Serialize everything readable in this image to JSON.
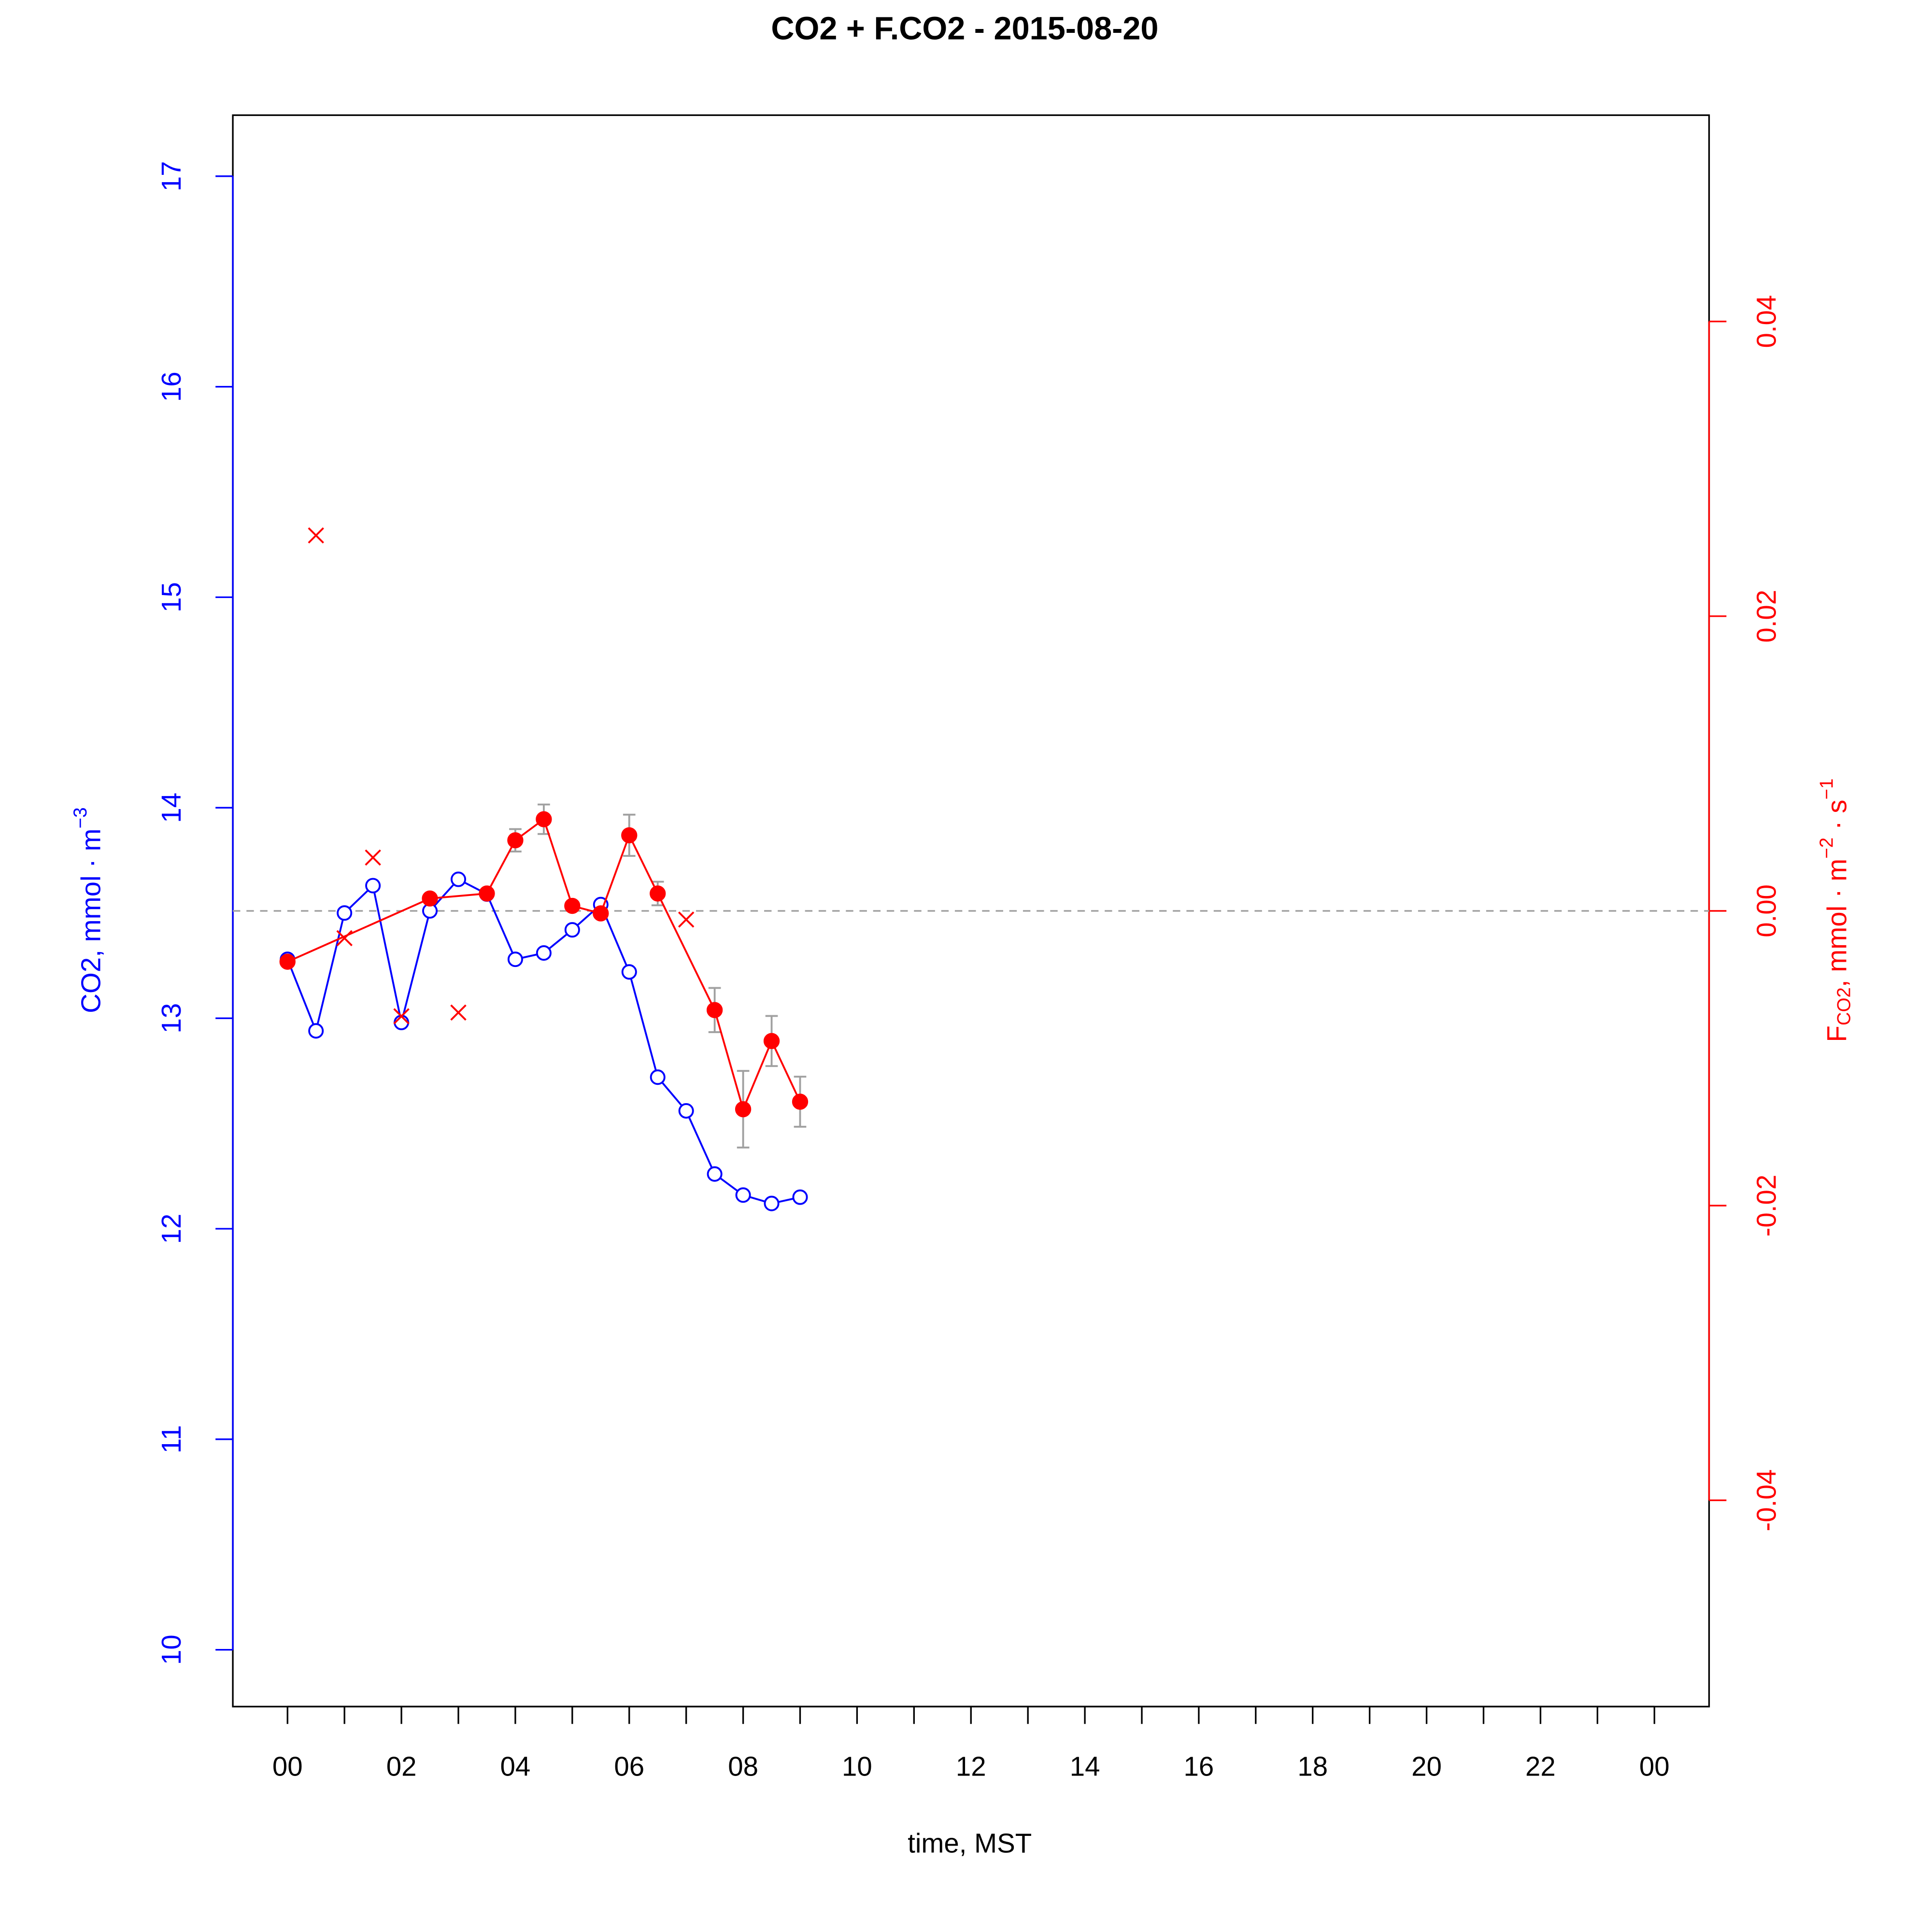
{
  "chart_data": {
    "type": "line",
    "title": "CO2 + F.CO2 -  2015-08-20",
    "xlabel": "time, MST",
    "ylabel": [
      {
        "text": "CO2, mmol · m"
      },
      {
        "sup": "−3"
      }
    ],
    "y2label": [
      {
        "text": "F"
      },
      {
        "sub": "CO2"
      },
      {
        "text": ", mmol · m"
      },
      {
        "sup": "−2"
      },
      {
        "text": " · s"
      },
      {
        "sup": "−1"
      }
    ],
    "xlim": [
      -0.96,
      24.96
    ],
    "xticks": [
      {
        "value": 0,
        "label": "00"
      },
      {
        "value": 2,
        "label": "02"
      },
      {
        "value": 4,
        "label": "04"
      },
      {
        "value": 6,
        "label": "06"
      },
      {
        "value": 8,
        "label": "08"
      },
      10,
      12,
      14,
      16,
      18,
      20,
      22,
      {
        "value": 24,
        "label": "00"
      }
    ],
    "xminorticks": [
      1,
      3,
      5,
      7,
      9,
      11,
      13,
      15,
      17,
      19,
      21,
      23
    ],
    "ylim": [
      9.73,
      17.29
    ],
    "yticks": [
      10,
      11,
      12,
      13,
      14,
      15,
      16,
      17
    ],
    "ycolor": "#0000ff",
    "y2lim": [
      -0.054,
      0.054
    ],
    "y2ticks": [
      -0.04,
      -0.02,
      {
        "value": 0,
        "label": "0.00"
      },
      0.02,
      0.04
    ],
    "y2color": "#ff0000",
    "hline": {
      "value": 0,
      "axis": "y2",
      "color": "#a0a0a0"
    },
    "errorcolor": "#a0a0a0",
    "series": [
      {
        "color": "#0000ff",
        "axis": "y",
        "marker": "open-circle",
        "line": true,
        "x": [
          0,
          0.5,
          1,
          1.5,
          2,
          2.5,
          3,
          3.5,
          4,
          4.5,
          5,
          5.5,
          6,
          6.5,
          7,
          7.5,
          8,
          8.5,
          9
        ],
        "values": [
          13.28,
          12.94,
          13.5,
          13.63,
          12.98,
          13.51,
          13.66,
          13.59,
          13.28,
          13.31,
          13.42,
          13.54,
          13.22,
          12.72,
          12.56,
          12.26,
          12.16,
          12.12,
          12.15
        ]
      },
      {
        "color": "#ff0000",
        "axis": "y2",
        "marker": "filled-circle",
        "line": true,
        "x": [
          0,
          2.5,
          3.5,
          4,
          4.5,
          5,
          5.5,
          6,
          6.5,
          7.5,
          8,
          8.5,
          9
        ],
        "values": [
          -0.00345,
          0.00084,
          0.00118,
          0.00479,
          0.00622,
          0.00034,
          -0.00017,
          0.00513,
          0.00118,
          -0.00673,
          -0.01346,
          -0.00883,
          -0.01295
        ],
        "errors": [
          0.0002,
          0.0002,
          0.0002,
          0.00076,
          0.001,
          0.0002,
          0.0002,
          0.0014,
          0.0008,
          0.0015,
          0.0026,
          0.0017,
          0.0017
        ]
      },
      {
        "color": "#ff0000",
        "axis": "y2",
        "marker": "cross",
        "line": false,
        "x": [
          0.5,
          1,
          1.5,
          2,
          3,
          7
        ],
        "values": [
          0.02548,
          -0.00185,
          0.00362,
          -0.00715,
          -0.0069,
          -0.00059
        ]
      }
    ]
  }
}
